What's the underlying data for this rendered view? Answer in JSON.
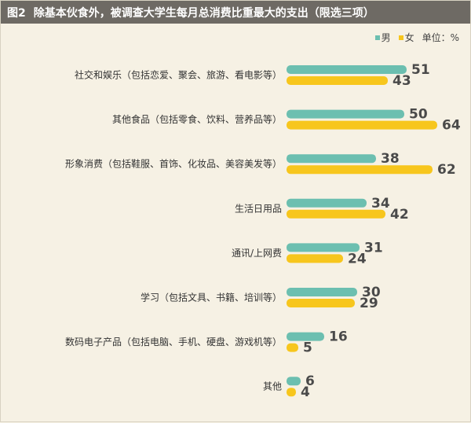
{
  "title": {
    "figure_label": "图2",
    "text": "除基本伙食外，被调查大学生每月总消费比重最大的支出（限选三项）"
  },
  "legend": {
    "male_label": "男",
    "female_label": "女",
    "unit": "单位：%"
  },
  "colors": {
    "male": "#6cbfb0",
    "female": "#f7c61d",
    "header_bg": "#6e6a64",
    "background": "#f6f1e4"
  },
  "chart_data": {
    "type": "bar",
    "orientation": "horizontal",
    "categories": [
      "社交和娱乐（包括恋爱、聚会、旅游、看电影等）",
      "其他食品（包括零食、饮料、营养品等）",
      "形象消费（包括鞋服、首饰、化妆品、美容美发等）",
      "生活日用品",
      "通讯/上网费",
      "学习（包括文具、书籍、培训等）",
      "数码电子产品（包括电脑、手机、硬盘、游戏机等）",
      "其他"
    ],
    "series": [
      {
        "name": "男",
        "values": [
          51,
          50,
          38,
          34,
          31,
          30,
          16,
          6
        ]
      },
      {
        "name": "女",
        "values": [
          43,
          64,
          62,
          42,
          24,
          29,
          5,
          4
        ]
      }
    ],
    "title": "除基本伙食外，被调查大学生每月总消费比重最大的支出（限选三项）",
    "unit": "%",
    "xlim": [
      0,
      64
    ],
    "grid": false,
    "legend_position": "top-right",
    "data_labels": true
  }
}
